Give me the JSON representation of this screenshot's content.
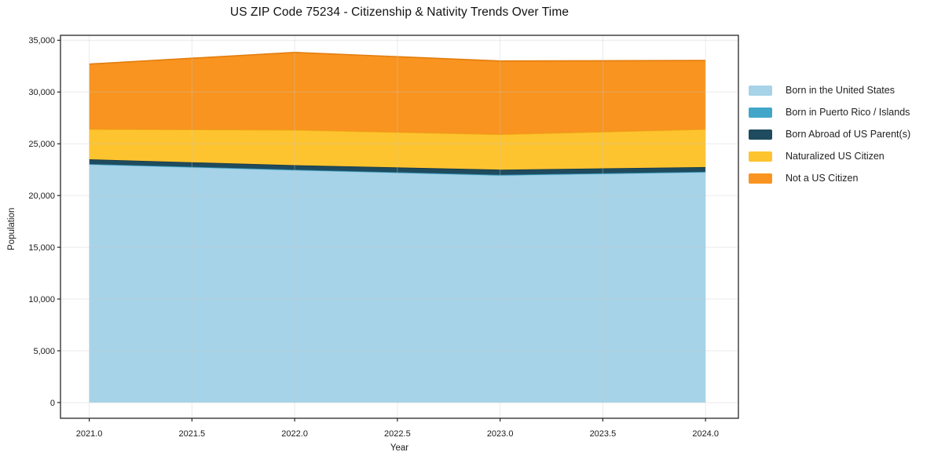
{
  "title": "US ZIP Code 75234 - Citizenship & Nativity Trends Over Time",
  "chart_data": {
    "type": "area",
    "stacked": true,
    "title": "US ZIP Code 75234 - Citizenship & Nativity Trends Over Time",
    "xlabel": "Year",
    "ylabel": "Population",
    "x": [
      2021,
      2022,
      2023,
      2024
    ],
    "series": [
      {
        "name": "Born in the United States",
        "values": [
          23000,
          22450,
          21950,
          22250
        ],
        "color": "#a6d3e8",
        "edge_color": "#8ec5de"
      },
      {
        "name": "Born in Puerto Rico / Islands",
        "values": [
          50,
          50,
          50,
          50
        ],
        "color": "#41a6c8",
        "edge_color": "#2f90b2"
      },
      {
        "name": "Born Abroad of US Parent(s)",
        "values": [
          450,
          430,
          500,
          450
        ],
        "color": "#1f4b5e",
        "edge_color": "#16394a"
      },
      {
        "name": "Naturalized US Citizen",
        "values": [
          2900,
          3400,
          3400,
          3650
        ],
        "color": "#fdc430",
        "edge_color": "#efae15"
      },
      {
        "name": "Not a US Citizen",
        "values": [
          6300,
          7500,
          7100,
          6650
        ],
        "color": "#f8941f",
        "edge_color": "#e37d0e"
      }
    ],
    "stack_totals": [
      32700,
      33830,
      33000,
      33050
    ],
    "xticks": {
      "values": [
        2021,
        2021.5,
        2022,
        2022.5,
        2023,
        2023.5,
        2024
      ],
      "labels": [
        "2021.0",
        "2021.5",
        "2022.0",
        "2022.5",
        "2023.0",
        "2023.5",
        "2024.0"
      ]
    },
    "yticks": {
      "values": [
        0,
        5000,
        10000,
        15000,
        20000,
        25000,
        30000,
        35000
      ],
      "labels": [
        "0",
        "5,000",
        "10,000",
        "15,000",
        "20,000",
        "25,000",
        "30,000",
        "35,000"
      ]
    },
    "xlim": [
      2020.86,
      2024.16
    ],
    "ylim": [
      -1520,
      35480
    ],
    "grid": true,
    "legend_position": "right",
    "axis_color": "#262626",
    "grid_color": "#c8c8c8",
    "tick_label_color": "#1a1a1a"
  }
}
